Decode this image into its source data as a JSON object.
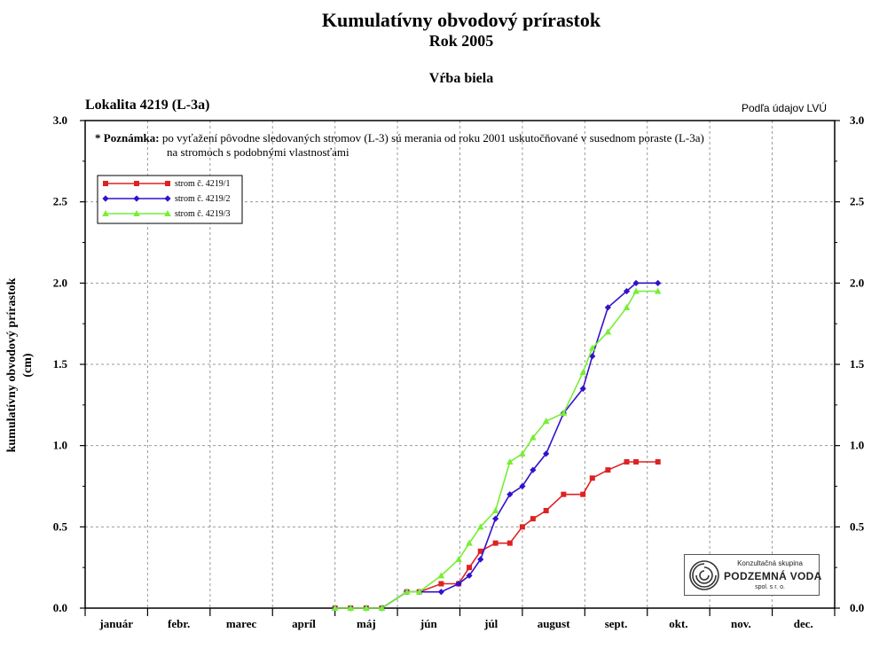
{
  "chart_data": {
    "type": "line",
    "title": "Kumulatívny obvodový prírastok",
    "subtitle": "Rok 2005",
    "species": "Vŕba biela",
    "location": "Lokalita 4219 (L-3a)",
    "source": "Podľa údajov LVÚ",
    "ylabel_line1": "kumulatívny obvodový prírastok",
    "ylabel_line2": "(cm)",
    "xlabel": "",
    "ylim": [
      0,
      3
    ],
    "yticks": [
      "0.0",
      "0.5",
      "1.0",
      "1.5",
      "2.0",
      "2.5",
      "3.0"
    ],
    "xlim": [
      0,
      12
    ],
    "categories": [
      "január",
      "febr.",
      "marec",
      "apríl",
      "máj",
      "jún",
      "júl",
      "august",
      "sept.",
      "okt.",
      "nov.",
      "dec."
    ],
    "grid": true,
    "legend_position": "top-left",
    "note_head": "* Poznámka:",
    "note_line1": "po vyťažení pôvodne sledovaných stromov (L-3) sú merania od roku 2001 uskutočňované v susednom poraste (L-3a)",
    "note_line2": "na stromoch s podobnými vlastnosťami",
    "series": [
      {
        "name": "strom č. 4219/1",
        "color": "#dd2222",
        "marker": "square",
        "x": [
          4.0,
          4.25,
          4.5,
          4.75,
          5.15,
          5.35,
          5.7,
          5.98,
          6.15,
          6.33,
          6.57,
          6.8,
          7.0,
          7.17,
          7.38,
          7.66,
          7.97,
          8.12,
          8.37,
          8.67,
          8.82,
          9.17
        ],
        "y": [
          0.0,
          0.0,
          0.0,
          0.0,
          0.1,
          0.1,
          0.15,
          0.15,
          0.25,
          0.35,
          0.4,
          0.4,
          0.5,
          0.55,
          0.6,
          0.7,
          0.7,
          0.8,
          0.85,
          0.9,
          0.9,
          0.9
        ]
      },
      {
        "name": "strom č. 4219/2",
        "color": "#3311cc",
        "marker": "diamond",
        "x": [
          4.0,
          4.25,
          4.5,
          4.75,
          5.15,
          5.35,
          5.7,
          5.98,
          6.15,
          6.33,
          6.57,
          6.8,
          7.0,
          7.17,
          7.38,
          7.66,
          7.97,
          8.12,
          8.37,
          8.67,
          8.82,
          9.17
        ],
        "y": [
          0.0,
          0.0,
          0.0,
          0.0,
          0.1,
          0.1,
          0.1,
          0.15,
          0.2,
          0.3,
          0.55,
          0.7,
          0.75,
          0.85,
          0.95,
          1.2,
          1.35,
          1.55,
          1.85,
          1.95,
          2.0,
          2.0
        ]
      },
      {
        "name": "strom č. 4219/3",
        "color": "#77ee33",
        "marker": "triangle",
        "x": [
          4.0,
          4.25,
          4.5,
          4.75,
          5.15,
          5.35,
          5.7,
          5.98,
          6.15,
          6.33,
          6.57,
          6.8,
          7.0,
          7.17,
          7.38,
          7.66,
          7.97,
          8.12,
          8.37,
          8.67,
          8.82,
          9.17
        ],
        "y": [
          0.0,
          0.0,
          0.0,
          0.0,
          0.1,
          0.1,
          0.2,
          0.3,
          0.4,
          0.5,
          0.6,
          0.9,
          0.95,
          1.05,
          1.15,
          1.2,
          1.45,
          1.6,
          1.7,
          1.85,
          1.95,
          1.95
        ]
      }
    ]
  },
  "logo": {
    "line1": "Konzultačná skupina",
    "line2": "PODZEMNÁ VODA",
    "line3": "spol. s r. o."
  }
}
